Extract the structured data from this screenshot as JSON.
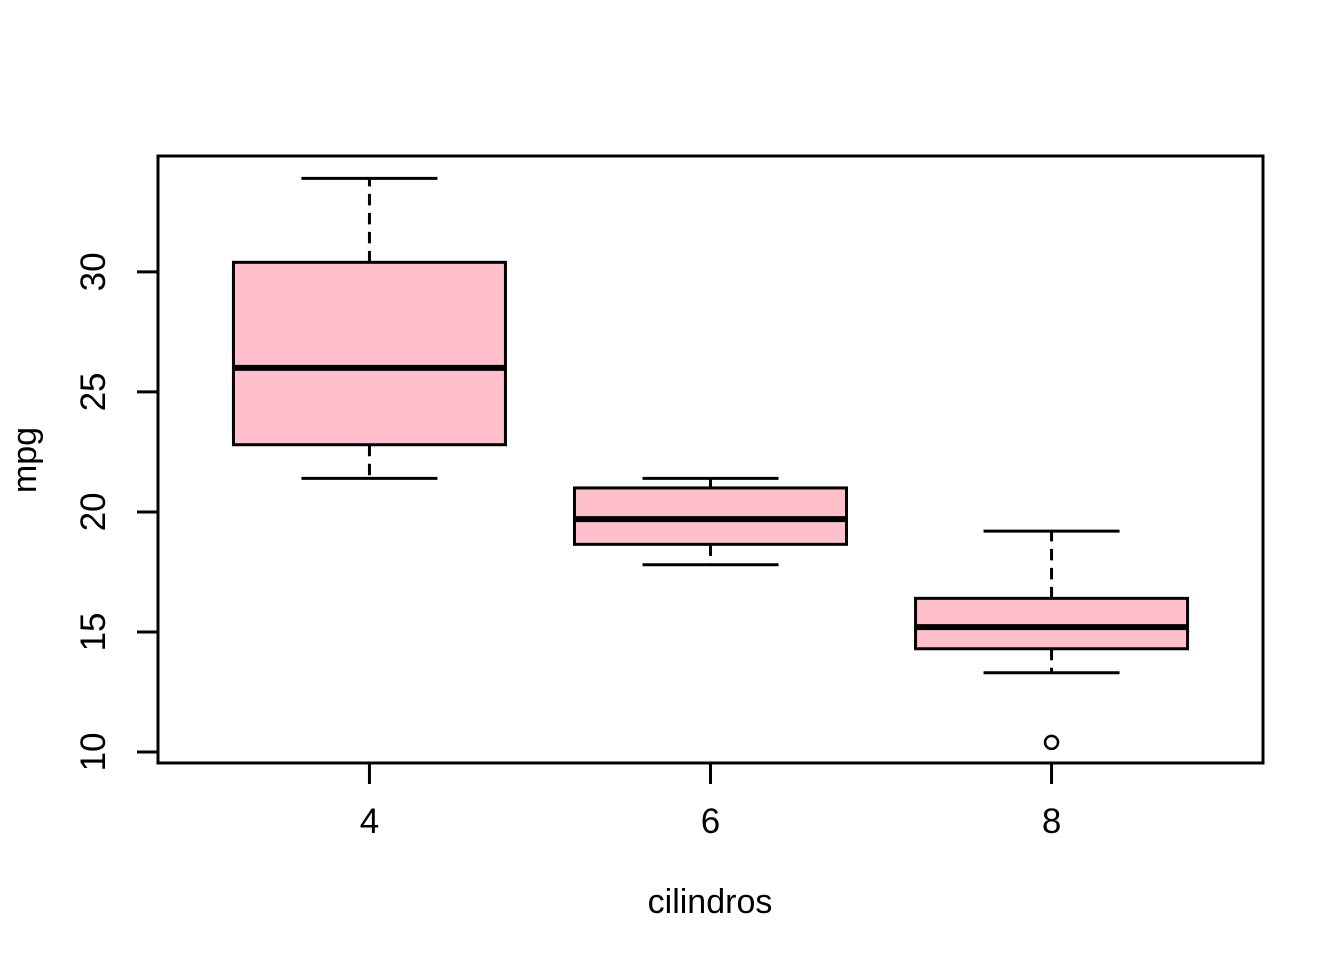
{
  "figure": {
    "background": "#FFFFFF"
  },
  "chart_data": {
    "type": "boxplot",
    "title": "",
    "xlabel": "cilindros",
    "ylabel": "mpg",
    "categories": [
      "4",
      "6",
      "8"
    ],
    "y_ticks": [
      10,
      15,
      20,
      25,
      30
    ],
    "ylim": [
      9.54,
      34.83
    ],
    "grid": false,
    "legend": false,
    "box_fill": "#FFC0CB",
    "line_color": "#000000",
    "boxes": [
      {
        "category": "4",
        "whisker_low": 21.4,
        "q1": 22.8,
        "median": 26.0,
        "q3": 30.4,
        "whisker_high": 33.9,
        "outliers": []
      },
      {
        "category": "6",
        "whisker_low": 17.8,
        "q1": 18.65,
        "median": 19.7,
        "q3": 21.0,
        "whisker_high": 21.4,
        "outliers": []
      },
      {
        "category": "8",
        "whisker_low": 13.3,
        "q1": 14.3,
        "median": 15.2,
        "q3": 16.4,
        "whisker_high": 19.2,
        "outliers": [
          10.4
        ]
      }
    ]
  }
}
